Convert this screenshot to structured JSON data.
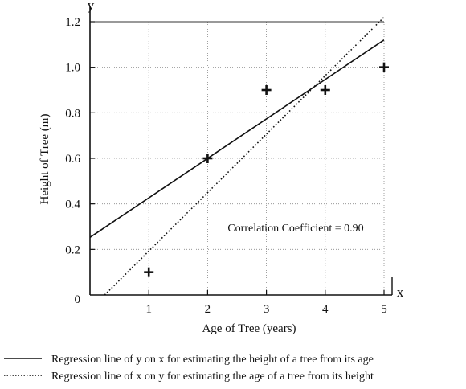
{
  "chart_data": {
    "type": "scatter",
    "title": "",
    "xlabel": "Age of Tree (years)",
    "ylabel": "Height of Tree (m)",
    "x_axis_letter": "x",
    "y_axis_letter": "y",
    "xlim": [
      0,
      5
    ],
    "ylim": [
      0,
      1.2
    ],
    "x_ticks": [
      "1",
      "2",
      "3",
      "4",
      "5"
    ],
    "y_ticks": [
      "0",
      "0.2",
      "0.4",
      "0.6",
      "0.8",
      "1.0",
      "1.2"
    ],
    "grid": true,
    "points": [
      {
        "x": 1,
        "y": 0.1
      },
      {
        "x": 2,
        "y": 0.6
      },
      {
        "x": 3,
        "y": 0.9
      },
      {
        "x": 4,
        "y": 0.9
      },
      {
        "x": 5,
        "y": 1.0
      }
    ],
    "lines": [
      {
        "style": "solid",
        "x1": -1.0,
        "y1": 0.0795,
        "x2": 5,
        "y2": 1.12
      },
      {
        "style": "dotted",
        "x1": 0.25,
        "y1": 0.0,
        "x2": 5,
        "y2": 1.22
      }
    ],
    "annotation": "Correlation Coefficient = 0.90",
    "legend": {
      "placement": "bottom",
      "entries": [
        {
          "style": "solid",
          "label": "Regression line of y on x for estimating the height of a tree from its age"
        },
        {
          "style": "dotted",
          "label": "Regression line of x on y for estimating the age of a tree from its height"
        }
      ]
    }
  }
}
